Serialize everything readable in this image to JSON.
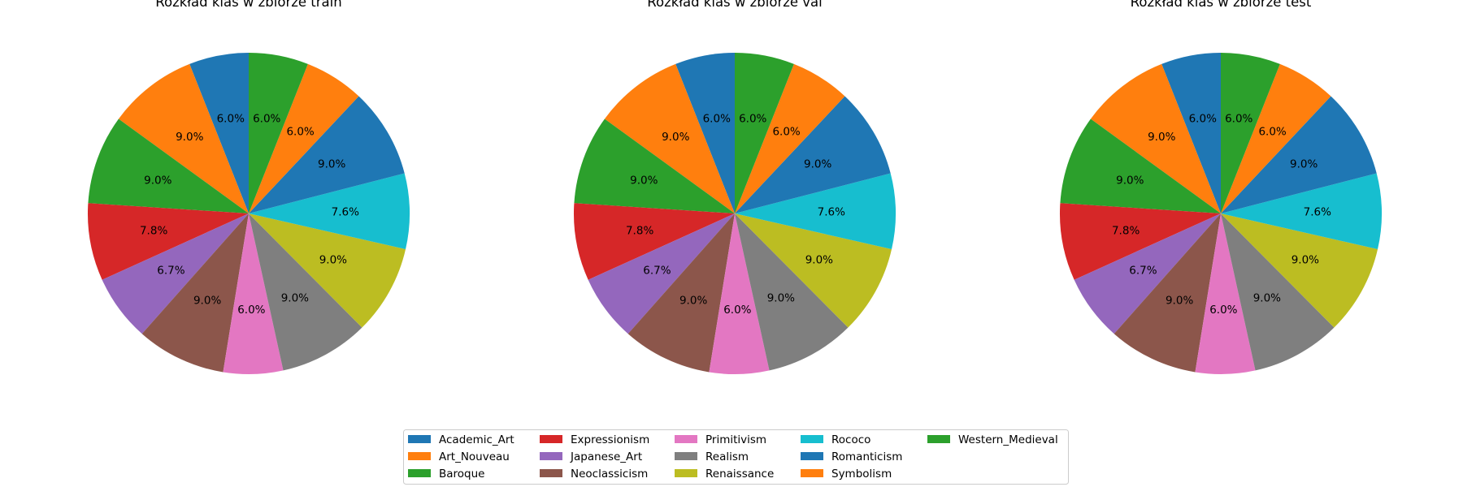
{
  "chart_data": [
    {
      "type": "pie",
      "title": "Rozkład klas w zbiorze train",
      "slices": [
        {
          "label": "Academic_Art",
          "value": 6.0,
          "pct_label": "6.0%"
        },
        {
          "label": "Art_Nouveau",
          "value": 9.0,
          "pct_label": "9.0%"
        },
        {
          "label": "Baroque",
          "value": 9.0,
          "pct_label": "9.0%"
        },
        {
          "label": "Expressionism",
          "value": 7.8,
          "pct_label": "7.8%"
        },
        {
          "label": "Japanese_Art",
          "value": 6.7,
          "pct_label": "6.7%"
        },
        {
          "label": "Neoclassicism",
          "value": 9.0,
          "pct_label": "9.0%"
        },
        {
          "label": "Primitivism",
          "value": 6.0,
          "pct_label": "6.0%"
        },
        {
          "label": "Realism",
          "value": 9.0,
          "pct_label": "9.0%"
        },
        {
          "label": "Renaissance",
          "value": 9.0,
          "pct_label": "9.0%"
        },
        {
          "label": "Rococo",
          "value": 7.6,
          "pct_label": "7.6%"
        },
        {
          "label": "Romanticism",
          "value": 9.0,
          "pct_label": "9.0%"
        },
        {
          "label": "Symbolism",
          "value": 6.0,
          "pct_label": "6.0%"
        },
        {
          "label": "Western_Medieval",
          "value": 6.0,
          "pct_label": "6.0%"
        }
      ]
    },
    {
      "type": "pie",
      "title": "Rozkład klas w zbiorze val",
      "slices": [
        {
          "label": "Academic_Art",
          "value": 6.0,
          "pct_label": "6.0%"
        },
        {
          "label": "Art_Nouveau",
          "value": 9.0,
          "pct_label": "9.0%"
        },
        {
          "label": "Baroque",
          "value": 9.0,
          "pct_label": "9.0%"
        },
        {
          "label": "Expressionism",
          "value": 7.8,
          "pct_label": "7.8%"
        },
        {
          "label": "Japanese_Art",
          "value": 6.7,
          "pct_label": "6.7%"
        },
        {
          "label": "Neoclassicism",
          "value": 9.0,
          "pct_label": "9.0%"
        },
        {
          "label": "Primitivism",
          "value": 6.0,
          "pct_label": "6.0%"
        },
        {
          "label": "Realism",
          "value": 9.0,
          "pct_label": "9.0%"
        },
        {
          "label": "Renaissance",
          "value": 9.0,
          "pct_label": "9.0%"
        },
        {
          "label": "Rococo",
          "value": 7.6,
          "pct_label": "7.6%"
        },
        {
          "label": "Romanticism",
          "value": 9.0,
          "pct_label": "9.0%"
        },
        {
          "label": "Symbolism",
          "value": 6.0,
          "pct_label": "6.0%"
        },
        {
          "label": "Western_Medieval",
          "value": 6.0,
          "pct_label": "6.0%"
        }
      ]
    },
    {
      "type": "pie",
      "title": "Rozkład klas w zbiorze test",
      "slices": [
        {
          "label": "Academic_Art",
          "value": 6.0,
          "pct_label": "6.0%"
        },
        {
          "label": "Art_Nouveau",
          "value": 9.0,
          "pct_label": "9.0%"
        },
        {
          "label": "Baroque",
          "value": 9.0,
          "pct_label": "9.0%"
        },
        {
          "label": "Expressionism",
          "value": 7.8,
          "pct_label": "7.8%"
        },
        {
          "label": "Japanese_Art",
          "value": 6.7,
          "pct_label": "6.7%"
        },
        {
          "label": "Neoclassicism",
          "value": 9.0,
          "pct_label": "9.0%"
        },
        {
          "label": "Primitivism",
          "value": 6.0,
          "pct_label": "6.0%"
        },
        {
          "label": "Realism",
          "value": 9.0,
          "pct_label": "9.0%"
        },
        {
          "label": "Renaissance",
          "value": 9.0,
          "pct_label": "9.0%"
        },
        {
          "label": "Rococo",
          "value": 7.6,
          "pct_label": "7.6%"
        },
        {
          "label": "Romanticism",
          "value": 9.0,
          "pct_label": "9.0%"
        },
        {
          "label": "Symbolism",
          "value": 6.0,
          "pct_label": "6.0%"
        },
        {
          "label": "Western_Medieval",
          "value": 6.0,
          "pct_label": "6.0%"
        }
      ]
    }
  ],
  "legend": {
    "placement": "bottom-center",
    "columns": 5,
    "entries": [
      {
        "label": "Academic_Art",
        "color": "#1f77b4"
      },
      {
        "label": "Art_Nouveau",
        "color": "#ff7f0e"
      },
      {
        "label": "Baroque",
        "color": "#2ca02c"
      },
      {
        "label": "Expressionism",
        "color": "#d62728"
      },
      {
        "label": "Japanese_Art",
        "color": "#9467bd"
      },
      {
        "label": "Neoclassicism",
        "color": "#8c564b"
      },
      {
        "label": "Primitivism",
        "color": "#e377c2"
      },
      {
        "label": "Realism",
        "color": "#7f7f7f"
      },
      {
        "label": "Renaissance",
        "color": "#bcbd22"
      },
      {
        "label": "Rococo",
        "color": "#17becf"
      },
      {
        "label": "Romanticism",
        "color": "#1f77b4"
      },
      {
        "label": "Symbolism",
        "color": "#ff7f0e"
      },
      {
        "label": "Western_Medieval",
        "color": "#2ca02c"
      }
    ]
  }
}
